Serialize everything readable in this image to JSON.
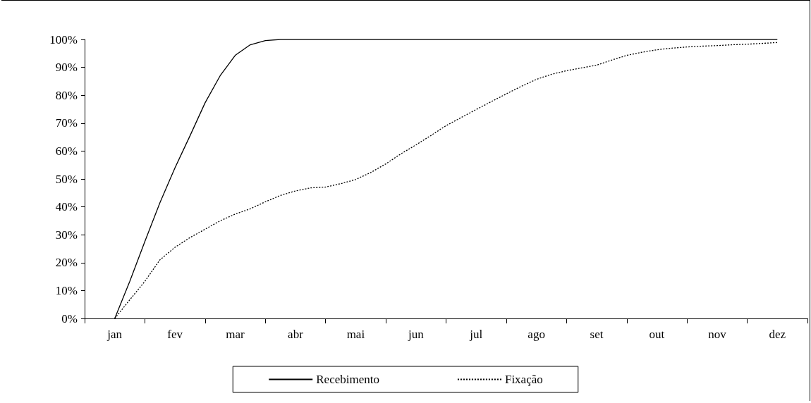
{
  "chart_data": {
    "type": "line",
    "categories": [
      null,
      null,
      "jan",
      null,
      null,
      null,
      "fev",
      null,
      null,
      null,
      "mar",
      null,
      null,
      null,
      "abr",
      null,
      null,
      null,
      "mai",
      null,
      null,
      null,
      "jun",
      null,
      null,
      null,
      "jul",
      null,
      null,
      null,
      "ago",
      null,
      null,
      null,
      "set",
      null,
      null,
      null,
      "out",
      null,
      null,
      null,
      "nov",
      null,
      null,
      null,
      "dez",
      null,
      null
    ],
    "ylim": [
      0,
      100
    ],
    "yticks": [
      {
        "value": 0,
        "label": "0%"
      },
      {
        "value": 10,
        "label": "10%"
      },
      {
        "value": 20,
        "label": "20%"
      },
      {
        "value": 30,
        "label": "30%"
      },
      {
        "value": 40,
        "label": "40%"
      },
      {
        "value": 50,
        "label": "50%"
      },
      {
        "value": 60,
        "label": "60%"
      },
      {
        "value": 70,
        "label": "70%"
      },
      {
        "value": 80,
        "label": "80%"
      },
      {
        "value": 90,
        "label": "90%"
      },
      {
        "value": 100,
        "label": "100%"
      }
    ],
    "grid": false,
    "legend": "bottom",
    "marker": "none",
    "series": [
      {
        "name": "Recebimento",
        "color": "#000000",
        "line_style": "solid",
        "values": [
          null,
          null,
          0,
          13.3,
          27.6,
          41.5,
          54,
          65.5,
          77.3,
          87,
          94.3,
          98.1,
          99.6,
          100,
          100,
          100,
          100,
          100,
          100,
          100,
          100,
          100,
          100,
          100,
          100,
          100,
          100,
          100,
          100,
          100,
          100,
          100,
          100,
          100,
          100,
          100,
          100,
          100,
          100,
          100,
          100,
          100,
          100,
          100,
          100,
          100,
          100,
          null,
          null
        ]
      },
      {
        "name": "Fixação",
        "color": "#000000",
        "line_style": "dotted",
        "values": [
          null,
          null,
          0,
          6.7,
          13.3,
          21,
          25.5,
          29,
          32,
          35,
          37.4,
          39.3,
          41.8,
          44.1,
          45.7,
          46.8,
          47.1,
          48.3,
          49.8,
          52.3,
          55.4,
          59,
          62.2,
          65.6,
          69.1,
          72,
          74.9,
          77.7,
          80.5,
          83.2,
          85.7,
          87.5,
          88.8,
          89.8,
          90.8,
          92.6,
          94.3,
          95.4,
          96.3,
          96.9,
          97.3,
          97.6,
          97.8,
          98.1,
          98.3,
          98.6,
          98.9,
          null,
          null
        ]
      }
    ]
  }
}
